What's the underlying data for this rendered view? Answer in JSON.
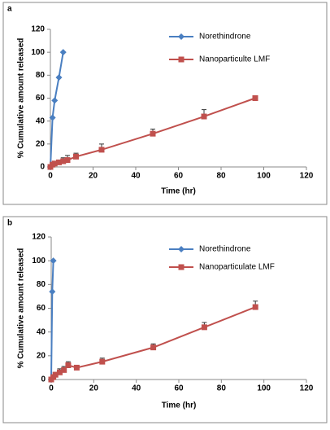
{
  "chart_data": [
    {
      "type": "line",
      "label": "a",
      "xlabel": "Time (hr)",
      "ylabel": "% Cumulative amount released",
      "xlim": [
        0,
        120
      ],
      "xticks": [
        0,
        20,
        40,
        60,
        80,
        100,
        120
      ],
      "ylim": [
        0,
        120
      ],
      "yticks": [
        0,
        20,
        40,
        60,
        80,
        100,
        120
      ],
      "series": [
        {
          "name": "Norethindrone",
          "color": "#4a7fc1",
          "marker": "diamond",
          "x": [
            0,
            1,
            2,
            4,
            6
          ],
          "values": [
            0,
            43,
            58,
            78,
            100
          ]
        },
        {
          "name": "Nanoparticulte LMF",
          "color": "#c0504d",
          "marker": "square",
          "x": [
            0,
            1,
            2,
            4,
            6,
            8,
            12,
            24,
            48,
            72,
            96
          ],
          "values": [
            0,
            2,
            3,
            4,
            5,
            6,
            9,
            15,
            29,
            44,
            60
          ],
          "error": [
            0,
            1,
            2,
            2,
            3,
            4,
            3,
            5,
            4,
            6,
            2
          ]
        }
      ]
    },
    {
      "type": "line",
      "label": "b",
      "xlabel": "Time (hr)",
      "ylabel": "% Cumulative amount released",
      "xlim": [
        0,
        120
      ],
      "xticks": [
        0,
        20,
        40,
        60,
        80,
        100,
        120
      ],
      "ylim": [
        0,
        120
      ],
      "yticks": [
        0,
        20,
        40,
        60,
        80,
        100,
        120
      ],
      "series": [
        {
          "name": "Norethindrone",
          "color": "#4a7fc1",
          "marker": "diamond",
          "x": [
            0,
            0.5,
            1
          ],
          "values": [
            0,
            74,
            100
          ]
        },
        {
          "name": "Nanoparticulate LMF",
          "color": "#c0504d",
          "marker": "square",
          "x": [
            0,
            1,
            2,
            4,
            6,
            8,
            12,
            24,
            48,
            72,
            96
          ],
          "values": [
            0,
            2,
            4,
            6,
            8,
            12,
            10,
            15,
            27,
            44,
            61
          ],
          "error": [
            0,
            2,
            2,
            3,
            3,
            3,
            2,
            3,
            3,
            4,
            5
          ]
        }
      ]
    }
  ]
}
